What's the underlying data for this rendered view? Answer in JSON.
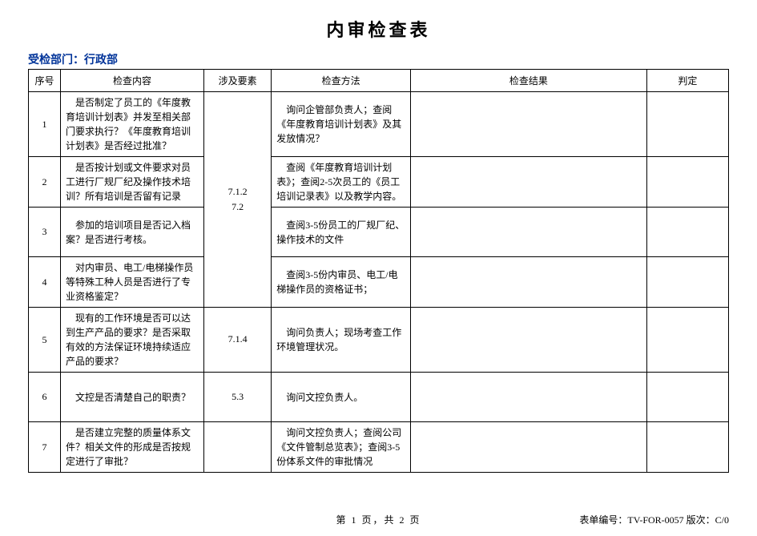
{
  "title": "内审检查表",
  "department_label": "受检部门：行政部",
  "columns": {
    "no": "序号",
    "content": "检查内容",
    "element": "涉及要素",
    "method": "检查方法",
    "result": "检查结果",
    "judge": "判定"
  },
  "element_group1_line1": "7.1.2",
  "element_group1_line2": "7.2",
  "element_row5": "7.1.4",
  "element_row6": "5.3",
  "rows": {
    "r1": {
      "no": "1",
      "content": "是否制定了员工的《年度教育培训计划表》并发至相关部门要求执行？《年度教育培训计划表》是否经过批准？",
      "method": "询问企管部负责人；查阅《年度教育培训计划表》及其发放情况？"
    },
    "r2": {
      "no": "2",
      "content": "是否按计划或文件要求对员工进行厂规厂纪及操作技术培训？所有培训是否留有记录",
      "method": "查阅《年度教育培训计划表》；查阅2-5次员工的《员工培训记录表》以及教学内容。"
    },
    "r3": {
      "no": "3",
      "content": "参加的培训项目是否记入档案？是否进行考核。",
      "method": "查阅3-5份员工的厂规厂纪、操作技术的文件"
    },
    "r4": {
      "no": "4",
      "content": "对内审员、电工/电梯操作员等特殊工种人员是否进行了专业资格鉴定？",
      "method": "查阅3-5份内审员、电工/电梯操作员的资格证书；"
    },
    "r5": {
      "no": "5",
      "content": "现有的工作环境是否可以达到生产产品的要求？是否采取有效的方法保证环境持续适应产品的要求？",
      "method": "询问负责人；现场考查工作环境管理状况。"
    },
    "r6": {
      "no": "6",
      "content": "文控是否清楚自己的职责？",
      "method": "询问文控负责人。"
    },
    "r7": {
      "no": "7",
      "content": "是否建立完整的质量体系文件？相关文件的形成是否按规定进行了审批？",
      "method": "询问文控负责人；查阅公司《文件管制总览表》；查阅3-5份体系文件的审批情况"
    }
  },
  "footer": {
    "page": "第 1 页，共 2 页",
    "form_no": "表单编号：TV-FOR-0057 版次：C/0"
  }
}
